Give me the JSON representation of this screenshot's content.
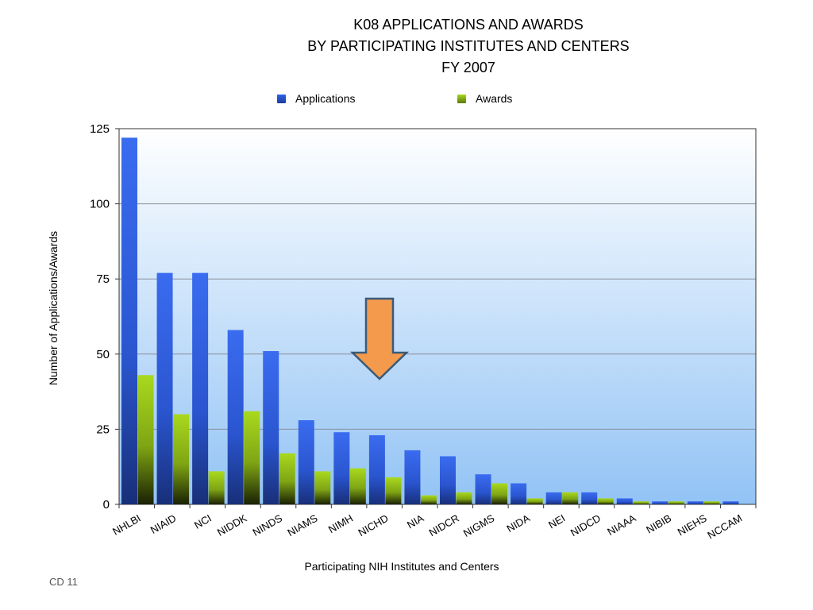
{
  "slide": {
    "footer": "CD 11"
  },
  "chart_data": {
    "type": "bar",
    "title_lines": [
      "K08 APPLICATIONS AND AWARDS",
      "BY PARTICIPATING INSTITUTES AND CENTERS",
      "FY 2007"
    ],
    "xlabel": "Participating NIH Institutes and Centers",
    "ylabel": "Number of Applications/Awards",
    "ylim": [
      0,
      125
    ],
    "yticks": [
      0,
      25,
      50,
      75,
      100,
      125
    ],
    "grid": true,
    "legend_position": "top",
    "categories": [
      "NHLBI",
      "NIAID",
      "NCI",
      "NIDDK",
      "NINDS",
      "NIAMS",
      "NIMH",
      "NICHD",
      "NIA",
      "NIDCR",
      "NIGMS",
      "NIDA",
      "NEI",
      "NIDCD",
      "NIAAA",
      "NIBIB",
      "NIEHS",
      "NCCAM"
    ],
    "series": [
      {
        "name": "Applications",
        "color": "#2f62e6",
        "values": [
          122,
          77,
          77,
          58,
          51,
          28,
          24,
          23,
          18,
          16,
          10,
          7,
          4,
          4,
          2,
          1,
          1,
          1
        ]
      },
      {
        "name": "Awards",
        "color": "#9ccc1a",
        "values": [
          43,
          30,
          11,
          31,
          17,
          11,
          12,
          9,
          3,
          4,
          7,
          2,
          4,
          2,
          1,
          1,
          1,
          0
        ]
      }
    ],
    "annotation": {
      "type": "down-arrow",
      "color": "#f49a4d",
      "near_category": "NICHD"
    }
  }
}
